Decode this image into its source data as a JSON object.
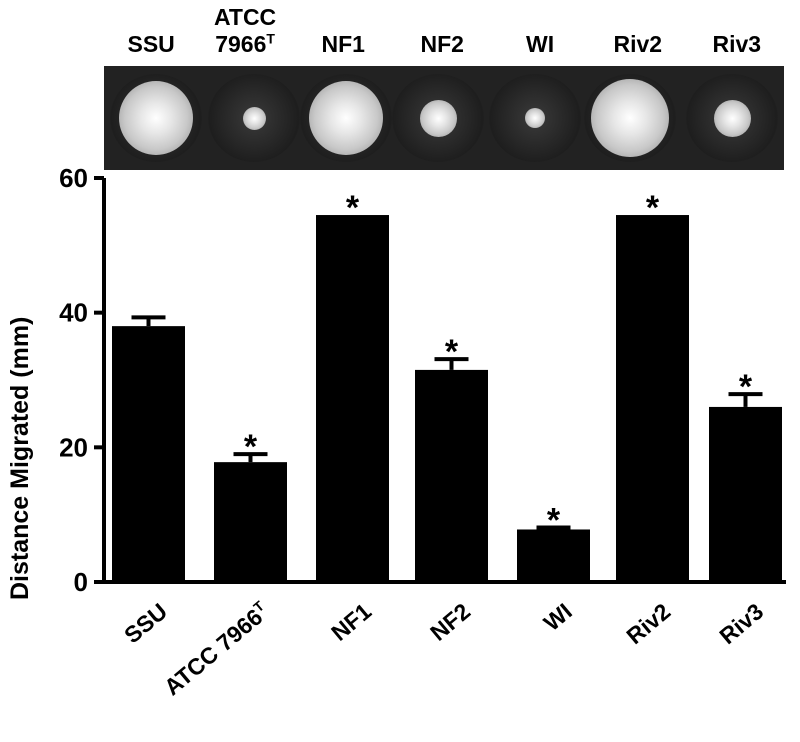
{
  "plate_strip": {
    "labels": [
      {
        "main": "SSU",
        "line2": "",
        "sup": ""
      },
      {
        "main": "ATCC",
        "line2": "7966",
        "sup": "T"
      },
      {
        "main": "NF1",
        "line2": "",
        "sup": ""
      },
      {
        "main": "NF2",
        "line2": "",
        "sup": ""
      },
      {
        "main": "WI",
        "line2": "",
        "sup": ""
      },
      {
        "main": "Riv2",
        "line2": "",
        "sup": ""
      },
      {
        "main": "Riv3",
        "line2": "",
        "sup": ""
      }
    ],
    "colony_swarm_fraction": [
      0.8,
      0.25,
      0.8,
      0.4,
      0.22,
      0.85,
      0.4
    ]
  },
  "chart_data": {
    "type": "bar",
    "categories": [
      "SSU",
      "ATCC 7966",
      "NF1",
      "NF2",
      "WI",
      "Riv2",
      "Riv3"
    ],
    "category_superscripts": [
      "",
      "T",
      "",
      "",
      "",
      "",
      ""
    ],
    "values": [
      38,
      17.8,
      54.5,
      31.5,
      7.8,
      54.5,
      26
    ],
    "error_plus": [
      1.3,
      1.2,
      0,
      1.6,
      0.3,
      0,
      1.9
    ],
    "significance": [
      "",
      "*",
      "*",
      "*",
      "*",
      "*",
      "*"
    ],
    "ylabel": "Distance Migrated (mm)",
    "xlabel": "",
    "ylim": [
      0,
      60
    ],
    "yticks": [
      0,
      20,
      40,
      60
    ],
    "bar_color": "#000000",
    "grid": false
  }
}
